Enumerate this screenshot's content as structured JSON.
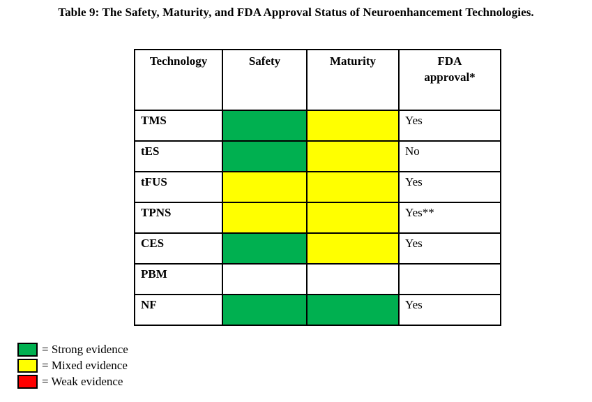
{
  "title": "Table 9: The Safety, Maturity, and FDA Approval Status of Neuroenhancement Technologies.",
  "colors": {
    "strong_evidence": "#00B050",
    "mixed_evidence": "#FFFF00",
    "weak_evidence": "#FF0000",
    "blank": "#FFFFFF",
    "border": "#000000"
  },
  "table": {
    "headers": [
      "Technology",
      "Safety",
      "Maturity",
      "FDA\napproval*"
    ],
    "rows": [
      {
        "technology": "TMS",
        "safety_level": "strong evidence",
        "safety_color": "#00B050",
        "maturity_level": "mixed evidence",
        "maturity_color": "#FFFF00",
        "fda": "Yes"
      },
      {
        "technology": "tES",
        "safety_level": "strong evidence",
        "safety_color": "#00B050",
        "maturity_level": "mixed evidence",
        "maturity_color": "#FFFF00",
        "fda": "No"
      },
      {
        "technology": "tFUS",
        "safety_level": "mixed evidence",
        "safety_color": "#FFFF00",
        "maturity_level": "mixed evidence",
        "maturity_color": "#FFFF00",
        "fda": "Yes"
      },
      {
        "technology": "TPNS",
        "safety_level": "mixed evidence",
        "safety_color": "#FFFF00",
        "maturity_level": "mixed evidence",
        "maturity_color": "#FFFF00",
        "fda": "Yes**"
      },
      {
        "technology": "CES",
        "safety_level": "strong evidence",
        "safety_color": "#00B050",
        "maturity_level": "mixed evidence",
        "maturity_color": "#FFFF00",
        "fda": "Yes"
      },
      {
        "technology": "PBM",
        "safety_level": "none",
        "safety_color": "#FFFFFF",
        "maturity_level": "none",
        "maturity_color": "#FFFFFF",
        "fda": ""
      },
      {
        "technology": "NF",
        "safety_level": "strong evidence",
        "safety_color": "#00B050",
        "maturity_level": "strong evidence",
        "maturity_color": "#00B050",
        "fda": "Yes"
      }
    ]
  },
  "legend": {
    "items": [
      {
        "label": "= Strong evidence",
        "color": "#00B050"
      },
      {
        "label": "= Mixed evidence",
        "color": "#FFFF00"
      },
      {
        "label": "= Weak evidence",
        "color": "#FF0000"
      }
    ]
  }
}
